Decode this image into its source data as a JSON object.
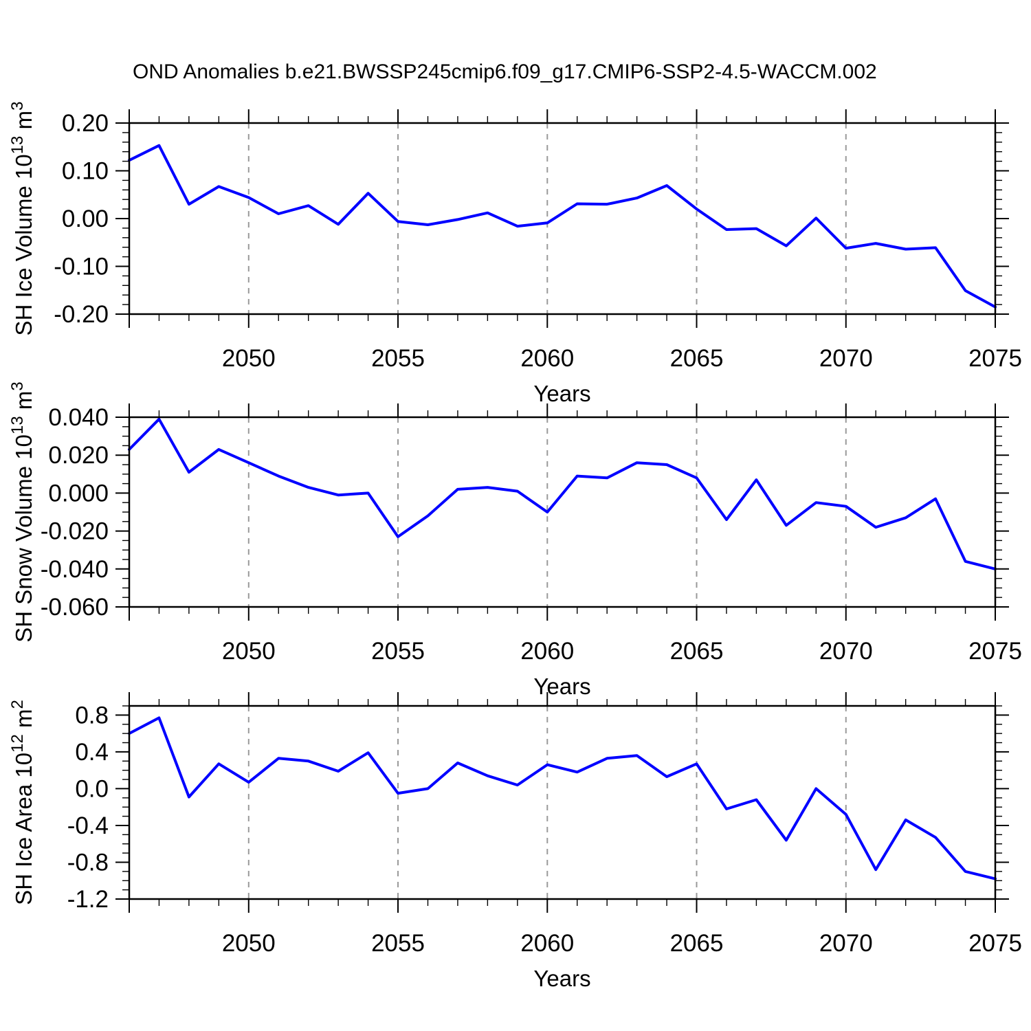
{
  "page": {
    "title": "OND Anomalies b.e21.BWSSP245cmip6.f09_g17.CMIP6-SSP2-4.5-WACCM.002",
    "background": "#ffffff"
  },
  "colors": {
    "line": "#0000ff",
    "grid": "#999999",
    "axis": "#000000",
    "text": "#000000"
  },
  "chart_data": [
    {
      "id": "ice-volume",
      "type": "line",
      "xlabel": "Years",
      "ylabel": "SH Ice Volume 10^13 m^3",
      "ylabel_parts": [
        {
          "t": "SH Ice Volume 10",
          "sup": false
        },
        {
          "t": "13",
          "sup": true
        },
        {
          "t": " m",
          "sup": false
        },
        {
          "t": "3",
          "sup": true
        }
      ],
      "x_range": [
        2046,
        2075
      ],
      "ylim": [
        -0.2,
        0.2
      ],
      "yticks": [
        0.2,
        0.1,
        0.0,
        -0.1,
        -0.2
      ],
      "ytick_labels": [
        "0.20",
        "0.10",
        "0.00",
        "-0.10",
        "-0.20"
      ],
      "y_minor_step": 0.02,
      "xticks": [
        2050,
        2055,
        2060,
        2065,
        2070,
        2075
      ],
      "xtick_labels": [
        "2050",
        "2055",
        "2060",
        "2065",
        "2070",
        "2075"
      ],
      "grid_years": [
        2050,
        2055,
        2060,
        2065,
        2070
      ],
      "x": [
        2046,
        2047,
        2048,
        2049,
        2050,
        2051,
        2052,
        2053,
        2054,
        2055,
        2056,
        2057,
        2058,
        2059,
        2060,
        2061,
        2062,
        2063,
        2064,
        2065,
        2066,
        2067,
        2068,
        2069,
        2070,
        2071,
        2072,
        2073,
        2074,
        2075
      ],
      "values": [
        0.122,
        0.153,
        0.03,
        0.067,
        0.044,
        0.01,
        0.027,
        -0.012,
        0.053,
        -0.006,
        -0.013,
        -0.002,
        0.012,
        -0.016,
        -0.009,
        0.031,
        0.03,
        0.043,
        0.069,
        0.02,
        -0.023,
        -0.021,
        -0.057,
        0.001,
        -0.062,
        -0.052,
        -0.064,
        -0.061,
        -0.151,
        -0.185
      ]
    },
    {
      "id": "snow-volume",
      "type": "line",
      "xlabel": "Years",
      "ylabel": "SH Snow Volume 10^13 m^3",
      "ylabel_parts": [
        {
          "t": "SH Snow Volume 10",
          "sup": false
        },
        {
          "t": "13",
          "sup": true
        },
        {
          "t": " m",
          "sup": false
        },
        {
          "t": "3",
          "sup": true
        }
      ],
      "x_range": [
        2046,
        2075
      ],
      "ylim": [
        -0.06,
        0.04
      ],
      "yticks": [
        0.04,
        0.02,
        0.0,
        -0.02,
        -0.04,
        -0.06
      ],
      "ytick_labels": [
        "0.040",
        "0.020",
        "0.000",
        "-0.020",
        "-0.040",
        "-0.060"
      ],
      "y_minor_step": 0.005,
      "xticks": [
        2050,
        2055,
        2060,
        2065,
        2070,
        2075
      ],
      "xtick_labels": [
        "2050",
        "2055",
        "2060",
        "2065",
        "2070",
        "2075"
      ],
      "grid_years": [
        2050,
        2055,
        2060,
        2065,
        2070
      ],
      "x": [
        2046,
        2047,
        2048,
        2049,
        2050,
        2051,
        2052,
        2053,
        2054,
        2055,
        2056,
        2057,
        2058,
        2059,
        2060,
        2061,
        2062,
        2063,
        2064,
        2065,
        2066,
        2067,
        2068,
        2069,
        2070,
        2071,
        2072,
        2073,
        2074,
        2075
      ],
      "values": [
        0.023,
        0.039,
        0.011,
        0.023,
        0.016,
        0.009,
        0.003,
        -0.001,
        0.0,
        -0.023,
        -0.012,
        0.002,
        0.003,
        0.001,
        -0.01,
        0.009,
        0.008,
        0.016,
        0.015,
        0.008,
        -0.014,
        0.007,
        -0.017,
        -0.005,
        -0.007,
        -0.018,
        -0.013,
        -0.003,
        -0.036,
        -0.04
      ]
    },
    {
      "id": "ice-area",
      "type": "line",
      "xlabel": "Years",
      "ylabel": "SH Ice Area 10^12 m^2",
      "ylabel_parts": [
        {
          "t": "SH Ice Area 10",
          "sup": false
        },
        {
          "t": "12",
          "sup": true
        },
        {
          "t": " m",
          "sup": false
        },
        {
          "t": "2",
          "sup": true
        }
      ],
      "x_range": [
        2046,
        2075
      ],
      "ylim": [
        -1.2,
        0.9
      ],
      "yticks": [
        0.8,
        0.4,
        0.0,
        -0.4,
        -0.8,
        -1.2
      ],
      "ytick_labels": [
        "0.8",
        "0.4",
        "0.0",
        "-0.4",
        "-0.8",
        "-1.2"
      ],
      "y_minor_step": 0.1,
      "xticks": [
        2050,
        2055,
        2060,
        2065,
        2070,
        2075
      ],
      "xtick_labels": [
        "2050",
        "2055",
        "2060",
        "2065",
        "2070",
        "2075"
      ],
      "grid_years": [
        2050,
        2055,
        2060,
        2065,
        2070
      ],
      "x": [
        2046,
        2047,
        2048,
        2049,
        2050,
        2051,
        2052,
        2053,
        2054,
        2055,
        2056,
        2057,
        2058,
        2059,
        2060,
        2061,
        2062,
        2063,
        2064,
        2065,
        2066,
        2067,
        2068,
        2069,
        2070,
        2071,
        2072,
        2073,
        2074,
        2075
      ],
      "values": [
        0.6,
        0.77,
        -0.09,
        0.27,
        0.07,
        0.33,
        0.3,
        0.19,
        0.39,
        -0.05,
        0.0,
        0.28,
        0.14,
        0.04,
        0.26,
        0.18,
        0.33,
        0.36,
        0.13,
        0.27,
        -0.22,
        -0.12,
        -0.56,
        0.0,
        -0.28,
        -0.88,
        -0.34,
        -0.53,
        -0.9,
        -0.98
      ]
    }
  ]
}
